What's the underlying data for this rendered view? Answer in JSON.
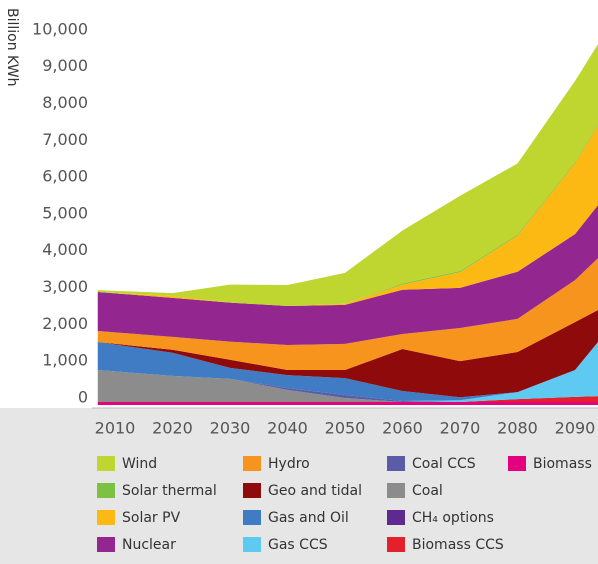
{
  "chart_data": {
    "type": "stacked_area",
    "y_label": "Billion KWh",
    "x": [
      2007,
      2020,
      2030,
      2040,
      2050,
      2060,
      2070,
      2080,
      2090,
      2094
    ],
    "xlim": [
      2006,
      2094
    ],
    "xticks": [
      2010,
      2020,
      2030,
      2040,
      2050,
      2060,
      2070,
      2080,
      2090
    ],
    "ylim": [
      0,
      11000
    ],
    "yticks": [
      0,
      {
        "value": 1000,
        "label": "1,000"
      },
      {
        "value": 2000,
        "label": "2,000"
      },
      {
        "value": 3000,
        "label": "3,000"
      },
      {
        "value": 4000,
        "label": "4,000"
      },
      {
        "value": 5000,
        "label": "5,000"
      },
      {
        "value": 6000,
        "label": "6,000"
      },
      {
        "value": 7000,
        "label": "7,000"
      },
      {
        "value": 8000,
        "label": "8,000"
      },
      {
        "value": 9000,
        "label": "9,000"
      },
      {
        "value": 10000,
        "label": "10,000"
      }
    ],
    "series": [
      {
        "name": "Wind",
        "color": "#bed62f",
        "values": [
          50,
          80,
          490,
          570,
          840,
          1440,
          2040,
          1930,
          2200,
          2170
        ]
      },
      {
        "name": "Solar thermal",
        "color": "#7cc242",
        "values": [
          0,
          0,
          0,
          0,
          0,
          30,
          30,
          30,
          30,
          30
        ]
      },
      {
        "name": "Solar PV",
        "color": "#fdb913",
        "values": [
          0,
          50,
          0,
          0,
          30,
          140,
          430,
          980,
          1930,
          2170
        ]
      },
      {
        "name": "Nuclear",
        "color": "#93278f",
        "values": [
          1060,
          1060,
          1060,
          1060,
          1060,
          1200,
          1090,
          1280,
          1250,
          1440
        ]
      },
      {
        "name": "Hydro",
        "color": "#f7941d",
        "values": [
          300,
          350,
          490,
          680,
          710,
          410,
          900,
          900,
          1140,
          1410
        ]
      },
      {
        "name": "Geo and tidal",
        "color": "#8f0a0a",
        "values": [
          0,
          80,
          220,
          140,
          220,
          1140,
          980,
          1090,
          1300,
          870
        ]
      },
      {
        "name": "Gas and Oil",
        "color": "#3f7cc4",
        "values": [
          760,
          630,
          300,
          350,
          460,
          270,
          80,
          0,
          0,
          0
        ]
      },
      {
        "name": "Gas CCS",
        "color": "#5ec9f1",
        "values": [
          0,
          0,
          0,
          0,
          0,
          0,
          50,
          190,
          730,
          1470
        ]
      },
      {
        "name": "Coal CCS",
        "color": "#5a5ca8",
        "values": [
          0,
          0,
          0,
          50,
          80,
          30,
          0,
          0,
          0,
          0
        ]
      },
      {
        "name": "Coal",
        "color": "#8c8c8c",
        "values": [
          870,
          710,
          630,
          330,
          110,
          0,
          0,
          0,
          0,
          0
        ]
      },
      {
        "name": "CH₄ options",
        "color": "#5e2a8f",
        "values": [
          0,
          0,
          0,
          0,
          0,
          0,
          0,
          0,
          0,
          0
        ]
      },
      {
        "name": "Biomass CCS",
        "color": "#e3202b",
        "values": [
          0,
          0,
          0,
          0,
          0,
          0,
          0,
          80,
          140,
          160
        ]
      },
      {
        "name": "Biomass",
        "color": "#e5007d",
        "values": [
          80,
          80,
          80,
          80,
          80,
          80,
          80,
          80,
          80,
          80
        ]
      }
    ]
  }
}
